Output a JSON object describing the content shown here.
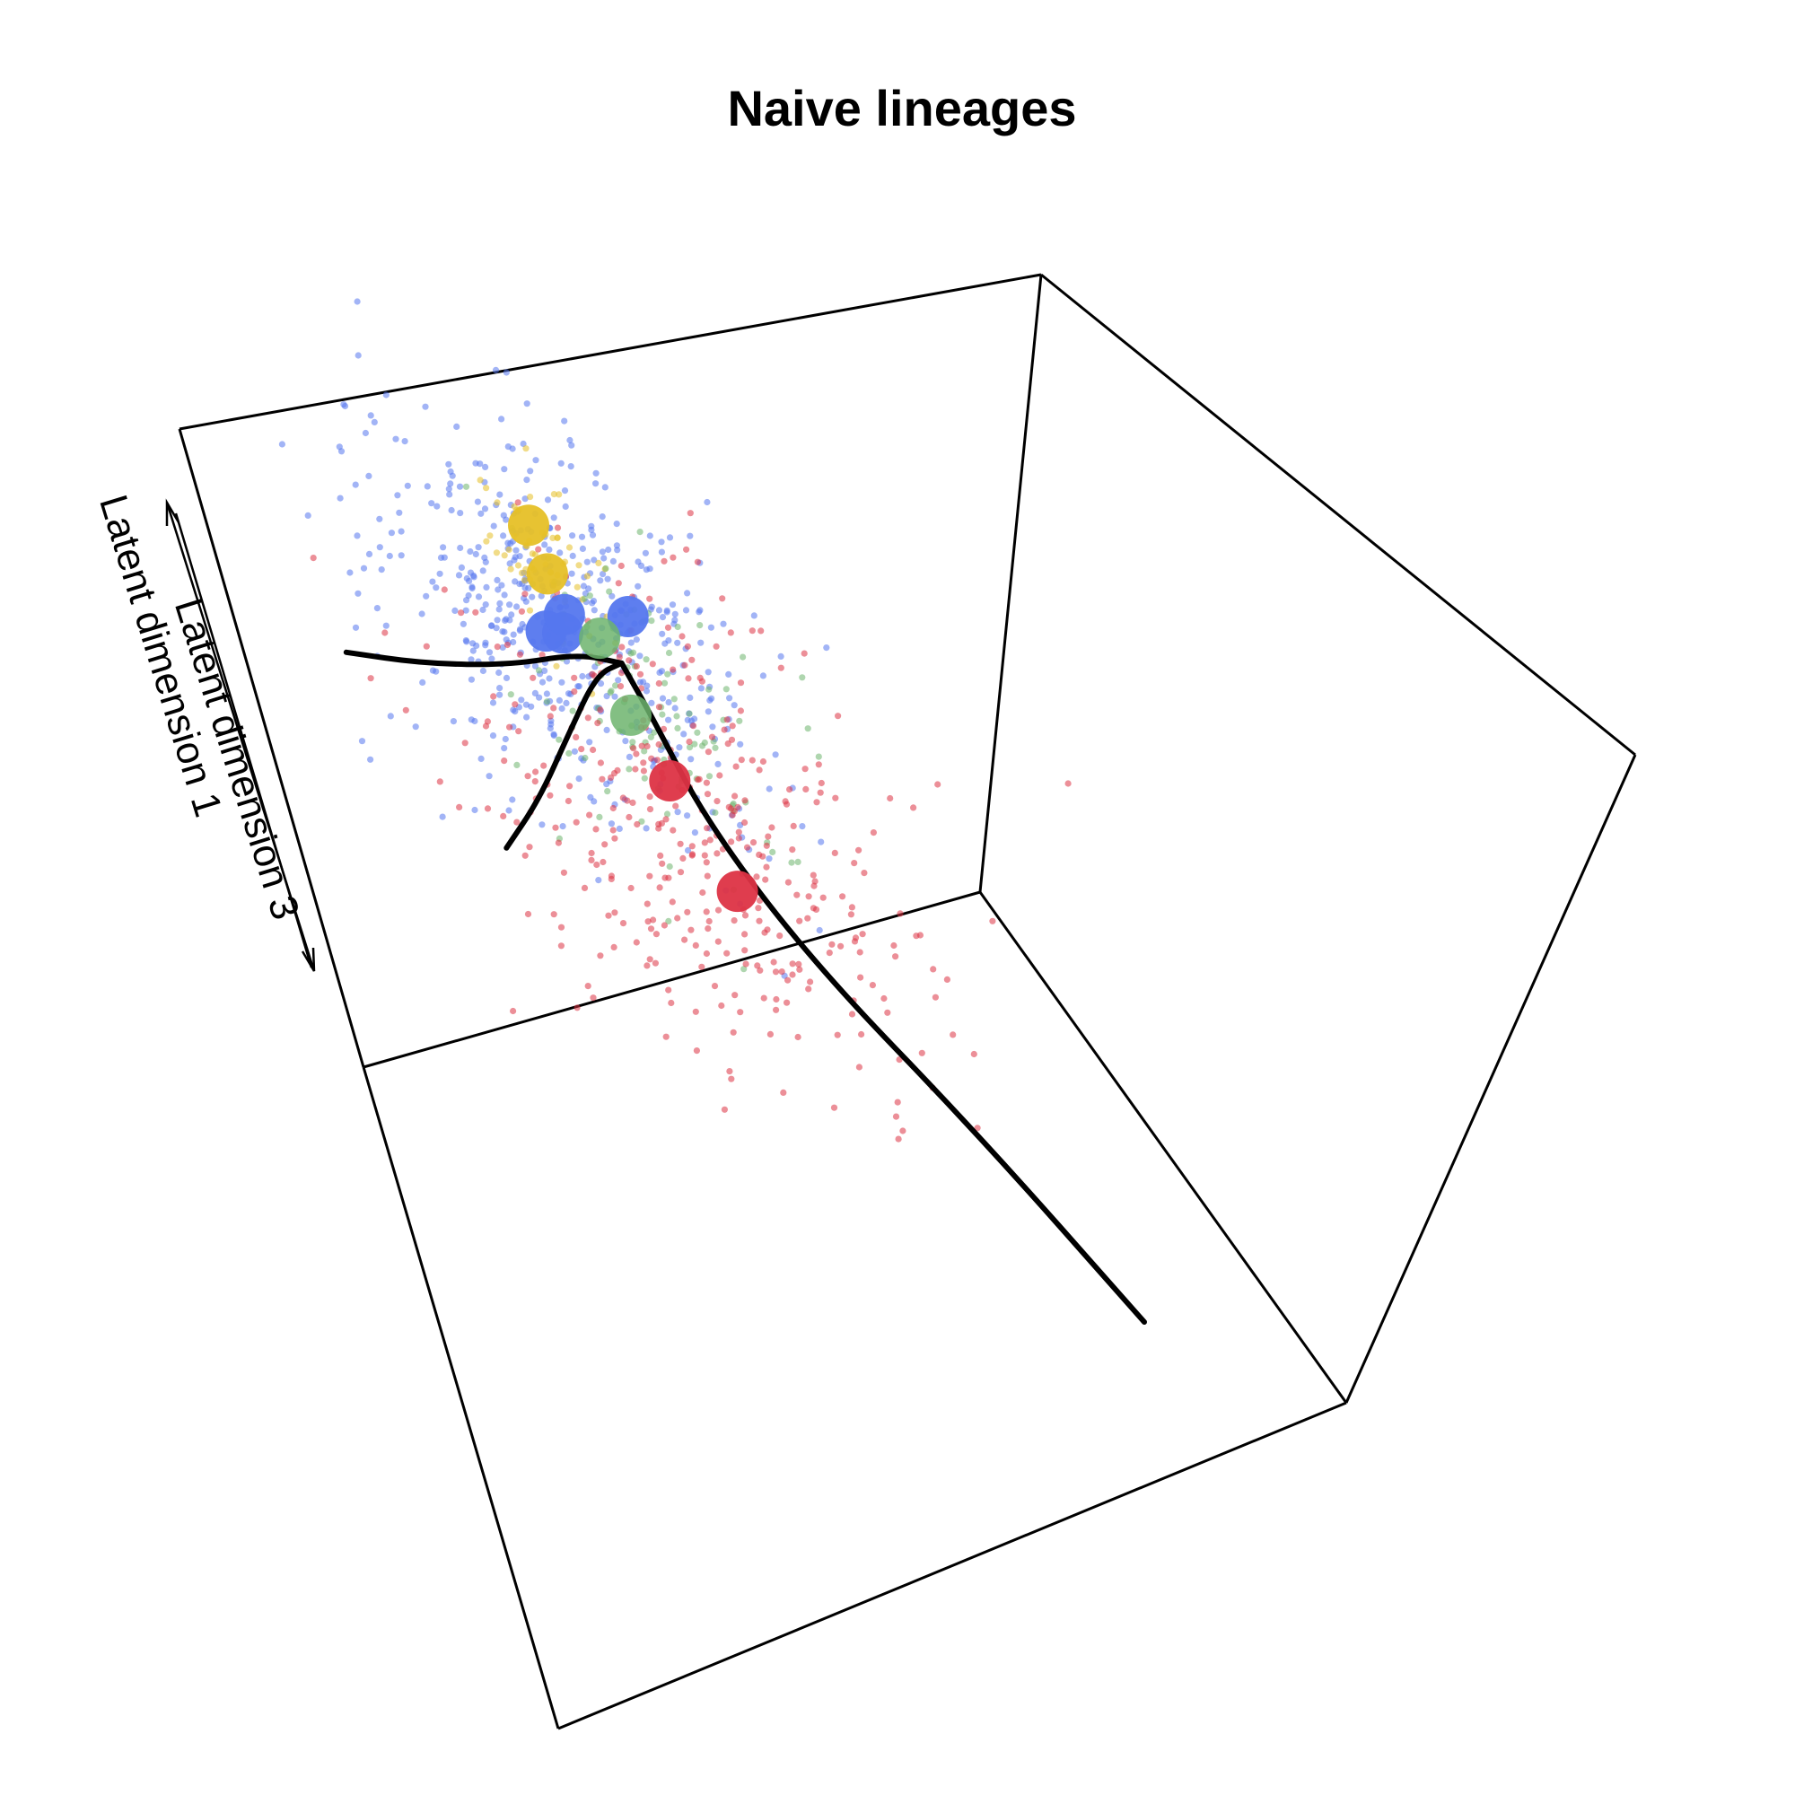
{
  "chart_data": {
    "type": "scatter",
    "projection": "3d",
    "title": "Naive lineages",
    "axis_labels": [
      "Latent dimension 3",
      "Latent dimension 1"
    ],
    "grid": false,
    "legend": "none",
    "series": [
      {
        "color": "#5577ee",
        "cluster_centers": [
          [
            -0.45,
            0.55,
            1.1
          ],
          [
            -0.1,
            0.15,
            1.3
          ],
          [
            -0.5,
            0.3,
            1.05
          ],
          [
            -0.4,
            0.4,
            1.2
          ]
        ]
      },
      {
        "color": "#e6c027",
        "cluster_centers": [
          [
            -0.5,
            0.5,
            1.65
          ],
          [
            -0.55,
            0.3,
            1.35
          ]
        ]
      },
      {
        "color": "#6db46d",
        "cluster_centers": [
          [
            -0.3,
            0.2,
            1.1
          ],
          [
            -0.05,
            0.35,
            0.8
          ]
        ]
      },
      {
        "color": "#dd3344",
        "cluster_centers": [
          [
            0.1,
            0.25,
            0.5
          ],
          [
            0.55,
            0.35,
            0.1
          ]
        ]
      }
    ],
    "lineage_curves": [
      [
        [
          -0.3,
          0.0,
          0.95
        ],
        [
          -0.55,
          0.1,
          0.9
        ],
        [
          -1.1,
          0.05,
          0.6
        ],
        [
          -1.8,
          -0.05,
          0.3
        ],
        [
          -2.4,
          -0.1,
          0.1
        ]
      ],
      [
        [
          -0.3,
          0.0,
          0.95
        ],
        [
          -0.5,
          0.0,
          0.8
        ],
        [
          -0.9,
          -0.2,
          0.3
        ],
        [
          -1.4,
          -0.5,
          -0.3
        ],
        [
          -1.9,
          -0.8,
          -0.8
        ]
      ],
      [
        [
          -0.3,
          0.0,
          0.95
        ],
        [
          -0.1,
          0.05,
          0.75
        ],
        [
          0.3,
          0.2,
          0.35
        ],
        [
          1.0,
          0.3,
          -0.1
        ],
        [
          2.0,
          0.25,
          -0.6
        ],
        [
          3.0,
          0.2,
          -1.2
        ]
      ]
    ]
  }
}
